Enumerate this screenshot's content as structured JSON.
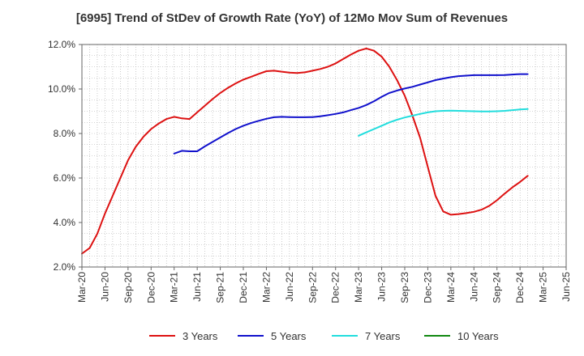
{
  "chart_data": {
    "type": "line",
    "title": "[6995]  Trend of StDev of Growth Rate (YoY) of 12Mo Mov Sum of Revenues",
    "xlabel": "",
    "ylabel": "",
    "ylim": [
      2.0,
      12.0
    ],
    "y_ticks": [
      "2.0%",
      "4.0%",
      "6.0%",
      "8.0%",
      "10.0%",
      "12.0%"
    ],
    "x_tick_labels": [
      "Mar-20",
      "Jun-20",
      "Sep-20",
      "Dec-20",
      "Mar-21",
      "Jun-21",
      "Sep-21",
      "Dec-21",
      "Mar-22",
      "Jun-22",
      "Sep-22",
      "Dec-22",
      "Mar-23",
      "Jun-23",
      "Sep-23",
      "Dec-23",
      "Mar-24",
      "Jun-24",
      "Sep-24",
      "Dec-24",
      "Mar-25",
      "Jun-25"
    ],
    "x_start": "Mar-20",
    "grid": true,
    "legend_position": "bottom",
    "series": [
      {
        "name": "3 Years",
        "color": "#dd1111",
        "start_index": 0,
        "values": [
          2.6,
          2.85,
          3.5,
          4.4,
          5.2,
          6.0,
          6.8,
          7.4,
          7.85,
          8.2,
          8.45,
          8.65,
          8.75,
          8.68,
          8.65,
          8.95,
          9.25,
          9.55,
          9.82,
          10.05,
          10.25,
          10.42,
          10.55,
          10.68,
          10.8,
          10.82,
          10.78,
          10.74,
          10.72,
          10.75,
          10.82,
          10.9,
          11.0,
          11.15,
          11.35,
          11.55,
          11.72,
          11.82,
          11.72,
          11.45,
          11.0,
          10.4,
          9.7,
          8.8,
          7.8,
          6.5,
          5.2,
          4.5,
          4.35,
          4.38,
          4.42,
          4.48,
          4.58,
          4.75,
          5.0,
          5.3,
          5.58,
          5.82,
          6.1
        ]
      },
      {
        "name": "5 Years",
        "color": "#1111cc",
        "start_index": 12,
        "values": [
          7.1,
          7.22,
          7.2,
          7.2,
          7.42,
          7.62,
          7.82,
          8.02,
          8.2,
          8.35,
          8.47,
          8.57,
          8.66,
          8.73,
          8.75,
          8.74,
          8.73,
          8.73,
          8.74,
          8.77,
          8.82,
          8.88,
          8.95,
          9.05,
          9.15,
          9.28,
          9.45,
          9.65,
          9.82,
          9.93,
          10.02,
          10.1,
          10.2,
          10.3,
          10.4,
          10.47,
          10.53,
          10.58,
          10.6,
          10.62,
          10.62,
          10.62,
          10.62,
          10.63,
          10.65,
          10.67,
          10.67
        ]
      },
      {
        "name": "7 Years",
        "color": "#22dddd",
        "start_index": 36,
        "values": [
          7.9,
          8.05,
          8.2,
          8.35,
          8.5,
          8.62,
          8.72,
          8.8,
          8.88,
          8.95,
          9.0,
          9.02,
          9.03,
          9.02,
          9.01,
          9.0,
          8.99,
          8.99,
          9.0,
          9.02,
          9.05,
          9.08,
          9.1
        ]
      },
      {
        "name": "10 Years",
        "color": "#118811",
        "start_index": 0,
        "values": []
      }
    ]
  }
}
